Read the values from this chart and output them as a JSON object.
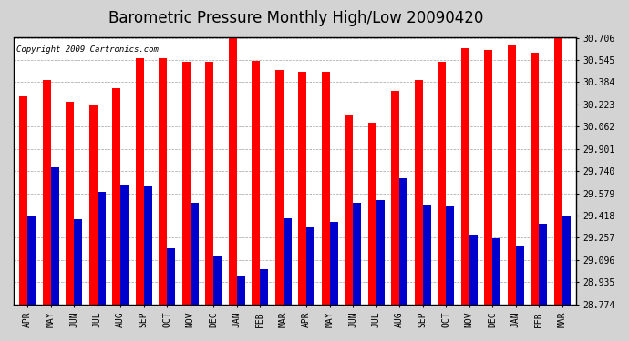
{
  "title": "Barometric Pressure Monthly High/Low 20090420",
  "copyright": "Copyright 2009 Cartronics.com",
  "categories": [
    "APR",
    "MAY",
    "JUN",
    "JUL",
    "AUG",
    "SEP",
    "OCT",
    "NOV",
    "DEC",
    "JAN",
    "FEB",
    "MAR",
    "APR",
    "MAY",
    "JUN",
    "JUL",
    "AUG",
    "SEP",
    "OCT",
    "NOV",
    "DEC",
    "JAN",
    "FEB",
    "MAR"
  ],
  "highs": [
    30.28,
    30.4,
    30.24,
    30.22,
    30.34,
    30.56,
    30.56,
    30.53,
    30.53,
    30.71,
    30.54,
    30.47,
    30.46,
    30.46,
    30.15,
    30.09,
    30.32,
    30.4,
    30.53,
    30.63,
    30.62,
    30.65,
    30.6,
    30.71
  ],
  "lows": [
    29.42,
    29.77,
    29.39,
    29.59,
    29.64,
    29.63,
    29.18,
    29.51,
    29.12,
    28.98,
    29.03,
    29.4,
    29.33,
    29.37,
    29.51,
    29.53,
    29.69,
    29.5,
    29.49,
    29.28,
    29.25,
    29.2,
    29.36,
    29.42
  ],
  "high_color": "#ff0000",
  "low_color": "#0000cc",
  "background_color": "#d3d3d3",
  "plot_bg_color": "#ffffff",
  "yticks": [
    28.774,
    28.935,
    29.096,
    29.257,
    29.418,
    29.579,
    29.74,
    29.901,
    30.062,
    30.223,
    30.384,
    30.545,
    30.706
  ],
  "ymin": 28.774,
  "ymax": 30.706,
  "grid_color": "#888888",
  "title_fontsize": 12,
  "copyright_fontsize": 6.5,
  "tick_fontsize": 7
}
